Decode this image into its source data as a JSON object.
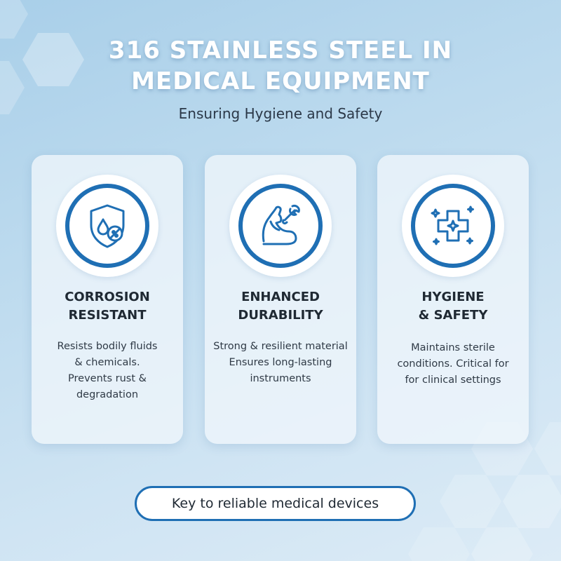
{
  "header": {
    "title_line1": "316 STAINLESS STEEL IN",
    "title_line2": "MEDICAL EQUIPMENT",
    "subtitle": "Ensuring Hygiene and Safety"
  },
  "cards": [
    {
      "icon": "shield-droplet-icon",
      "title_line1": "CORROSION",
      "title_line2": "RESISTANT",
      "desc_lines": [
        "Resists bodily fluids",
        "& chemicals.",
        "Prevents rust &",
        "degradation"
      ]
    },
    {
      "icon": "flexed-arm-wrench-icon",
      "title_line1": "ENHANCED",
      "title_line2": "DURABILITY",
      "desc_lines": [
        "Strong & resilient material",
        "Ensures long-lasting",
        "instruments"
      ]
    },
    {
      "icon": "medical-cross-sparkle-icon",
      "title_line1": "HYGIENE",
      "title_line2": "& SAFETY",
      "desc_lines": [
        "Maintains sterile",
        "conditions. Critical for",
        "for clinical settings"
      ]
    }
  ],
  "footer": {
    "tagline": "Key to reliable medical devices"
  },
  "colors": {
    "accent": "#1f6fb4",
    "background": "#bcdaee",
    "card": "#f0f6fb"
  }
}
